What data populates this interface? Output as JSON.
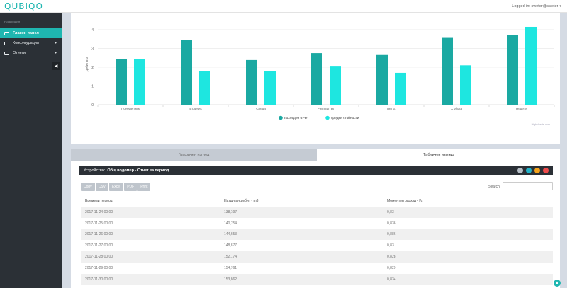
{
  "header": {
    "logo": "QUBIQO",
    "user_text": "Logged in: sweter@sweter"
  },
  "sidebar": {
    "heading": "Навигация",
    "items": [
      {
        "label": "Главен панел",
        "icon": "monitor-icon",
        "active": true
      },
      {
        "label": "Конфигурация",
        "icon": "list-icon",
        "active": false
      },
      {
        "label": "Отчети",
        "icon": "chart-icon",
        "active": false
      }
    ]
  },
  "chart_data": {
    "type": "bar",
    "categories": [
      "Понеделник",
      "Вторник",
      "Среда",
      "Четвъртък",
      "Петък",
      "Събота",
      "Неделя"
    ],
    "series": [
      {
        "name": "последен отчет",
        "color": "#1aa9a2",
        "values": [
          2.45,
          3.45,
          2.38,
          2.75,
          2.65,
          3.6,
          3.7
        ]
      },
      {
        "name": "средни стойности",
        "color": "#1ee6e0",
        "values": [
          2.45,
          1.78,
          1.8,
          2.07,
          1.7,
          2.1,
          4.15
        ]
      }
    ],
    "ylabel": "Дебит m3",
    "yticks": [
      0,
      1,
      2,
      3,
      4
    ],
    "ylim": [
      0,
      4.3
    ],
    "grid": true,
    "legend": "bottom",
    "watermark": "Highcharts.com"
  },
  "tabs": {
    "graph": "Графичен изглед",
    "table": "Табличен изглед"
  },
  "device": {
    "label": "Устройство:",
    "value": "Общ водомер - Отчет за период",
    "buttons": [
      {
        "name": "settings",
        "color": "#b7bfc7"
      },
      {
        "name": "refresh",
        "color": "#21b2c8"
      },
      {
        "name": "minimize",
        "color": "#f4a21b"
      },
      {
        "name": "close",
        "color": "#ee4b4b"
      }
    ]
  },
  "export": [
    "Copy",
    "CSV",
    "Excel",
    "PDF",
    "Print"
  ],
  "search": {
    "label": "Search:",
    "value": ""
  },
  "table": {
    "headers": [
      "Времеви период",
      "Натрупан дебит - m3",
      "Моментен разход - l/s"
    ],
    "rows": [
      [
        "2017-11-24 00:00",
        "138,197",
        "0,83"
      ],
      [
        "2017-11-25 00:00",
        "140,754",
        "0,836"
      ],
      [
        "2017-11-26 00:00",
        "144,653",
        "0,886"
      ],
      [
        "2017-11-27 00:00",
        "148,877",
        "0,83"
      ],
      [
        "2017-11-28 00:00",
        "152,174",
        "0,828"
      ],
      [
        "2017-11-29 00:00",
        "154,761",
        "0,829"
      ],
      [
        "2017-11-30 00:00",
        "153,862",
        "0,834"
      ]
    ]
  }
}
